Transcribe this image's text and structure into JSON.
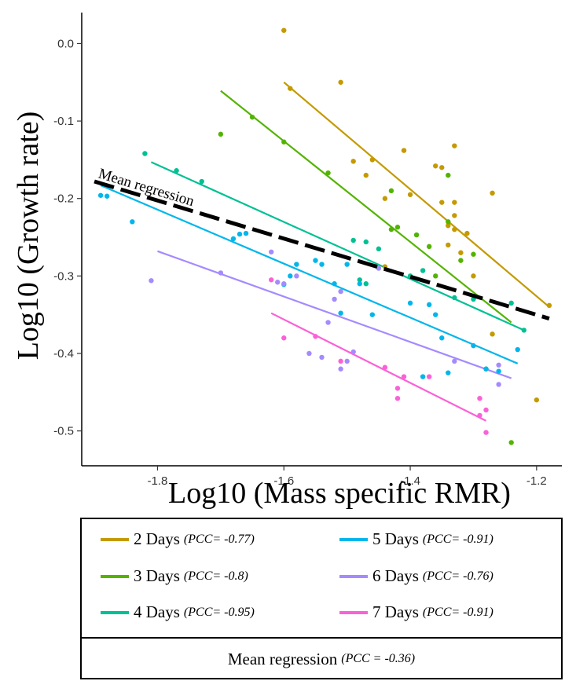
{
  "chart_data": {
    "type": "scatter",
    "xlabel": "Log10 (Mass specific RMR)",
    "ylabel": "Log10 (Growth rate)",
    "xlim": [
      -1.92,
      -1.16
    ],
    "ylim": [
      -0.545,
      0.04
    ],
    "x_ticks": [
      -1.8,
      -1.6,
      -1.4,
      -1.2
    ],
    "x_tick_labels": [
      "-1.8",
      "-1.6",
      "-1.4",
      "-1.2"
    ],
    "y_ticks": [
      0.0,
      -0.1,
      -0.2,
      -0.3,
      -0.4,
      -0.5
    ],
    "y_tick_labels": [
      "0.0",
      "-0.1",
      "-0.2",
      "-0.3",
      "-0.4",
      "-0.5"
    ],
    "grid": false,
    "legend_position": "bottom",
    "series": [
      {
        "name": "2 Days",
        "pcc": "(PCC= -0.77)",
        "color": "#C49A00",
        "line": [
          [
            -1.6,
            -0.05
          ],
          [
            -1.18,
            -0.34
          ]
        ],
        "points": [
          [
            -1.6,
            0.017
          ],
          [
            -1.59,
            -0.058
          ],
          [
            -1.51,
            -0.05
          ],
          [
            -1.49,
            -0.152
          ],
          [
            -1.46,
            -0.15
          ],
          [
            -1.47,
            -0.17
          ],
          [
            -1.44,
            -0.2
          ],
          [
            -1.41,
            -0.138
          ],
          [
            -1.4,
            -0.195
          ],
          [
            -1.44,
            -0.288
          ],
          [
            -1.36,
            -0.158
          ],
          [
            -1.35,
            -0.16
          ],
          [
            -1.35,
            -0.205
          ],
          [
            -1.34,
            -0.235
          ],
          [
            -1.33,
            -0.132
          ],
          [
            -1.33,
            -0.205
          ],
          [
            -1.33,
            -0.222
          ],
          [
            -1.32,
            -0.27
          ],
          [
            -1.31,
            -0.245
          ],
          [
            -1.3,
            -0.3
          ],
          [
            -1.34,
            -0.26
          ],
          [
            -1.27,
            -0.193
          ],
          [
            -1.27,
            -0.375
          ],
          [
            -1.2,
            -0.46
          ],
          [
            -1.18,
            -0.338
          ],
          [
            -1.33,
            -0.24
          ]
        ]
      },
      {
        "name": "3 Days",
        "pcc": "(PCC= -0.8)",
        "color": "#53B400",
        "line": [
          [
            -1.7,
            -0.061
          ],
          [
            -1.24,
            -0.36
          ]
        ],
        "points": [
          [
            -1.7,
            -0.117
          ],
          [
            -1.65,
            -0.095
          ],
          [
            -1.6,
            -0.127
          ],
          [
            -1.53,
            -0.167
          ],
          [
            -1.43,
            -0.19
          ],
          [
            -1.42,
            -0.237
          ],
          [
            -1.39,
            -0.247
          ],
          [
            -1.37,
            -0.262
          ],
          [
            -1.36,
            -0.3
          ],
          [
            -1.34,
            -0.17
          ],
          [
            -1.32,
            -0.28
          ],
          [
            -1.3,
            -0.272
          ],
          [
            -1.24,
            -0.515
          ],
          [
            -1.43,
            -0.24
          ],
          [
            -1.28,
            -0.42
          ],
          [
            -1.34,
            -0.23
          ]
        ]
      },
      {
        "name": "4 Days",
        "pcc": "(PCC= -0.95)",
        "color": "#00C094",
        "line": [
          [
            -1.81,
            -0.153
          ],
          [
            -1.22,
            -0.37
          ]
        ],
        "points": [
          [
            -1.82,
            -0.142
          ],
          [
            -1.77,
            -0.164
          ],
          [
            -1.73,
            -0.178
          ],
          [
            -1.49,
            -0.254
          ],
          [
            -1.47,
            -0.256
          ],
          [
            -1.45,
            -0.265
          ],
          [
            -1.47,
            -0.31
          ],
          [
            -1.38,
            -0.293
          ],
          [
            -1.33,
            -0.328
          ],
          [
            -1.3,
            -0.33
          ],
          [
            -1.24,
            -0.335
          ],
          [
            -1.22,
            -0.37
          ],
          [
            -1.4,
            -0.3
          ],
          [
            -1.48,
            -0.305
          ]
        ]
      },
      {
        "name": "5 Days",
        "pcc": "(PCC= -0.91)",
        "color": "#00B6EB",
        "line": [
          [
            -1.89,
            -0.183
          ],
          [
            -1.23,
            -0.413
          ]
        ],
        "points": [
          [
            -1.89,
            -0.196
          ],
          [
            -1.88,
            -0.197
          ],
          [
            -1.84,
            -0.23
          ],
          [
            -1.66,
            -0.245
          ],
          [
            -1.67,
            -0.246
          ],
          [
            -1.68,
            -0.252
          ],
          [
            -1.59,
            -0.3
          ],
          [
            -1.58,
            -0.285
          ],
          [
            -1.6,
            -0.311
          ],
          [
            -1.55,
            -0.28
          ],
          [
            -1.52,
            -0.31
          ],
          [
            -1.51,
            -0.348
          ],
          [
            -1.48,
            -0.31
          ],
          [
            -1.46,
            -0.35
          ],
          [
            -1.45,
            -0.29
          ],
          [
            -1.4,
            -0.335
          ],
          [
            -1.37,
            -0.337
          ],
          [
            -1.36,
            -0.35
          ],
          [
            -1.35,
            -0.38
          ],
          [
            -1.34,
            -0.425
          ],
          [
            -1.38,
            -0.43
          ],
          [
            -1.28,
            -0.42
          ],
          [
            -1.3,
            -0.39
          ],
          [
            -1.26,
            -0.423
          ],
          [
            -1.23,
            -0.395
          ],
          [
            -1.5,
            -0.285
          ],
          [
            -1.54,
            -0.285
          ]
        ]
      },
      {
        "name": "6 Days",
        "pcc": "(PCC= -0.76)",
        "color": "#A58AFF",
        "line": [
          [
            -1.8,
            -0.268
          ],
          [
            -1.24,
            -0.432
          ]
        ],
        "points": [
          [
            -1.81,
            -0.306
          ],
          [
            -1.7,
            -0.296
          ],
          [
            -1.62,
            -0.269
          ],
          [
            -1.61,
            -0.308
          ],
          [
            -1.58,
            -0.3
          ],
          [
            -1.56,
            -0.4
          ],
          [
            -1.53,
            -0.36
          ],
          [
            -1.52,
            -0.33
          ],
          [
            -1.51,
            -0.32
          ],
          [
            -1.5,
            -0.41
          ],
          [
            -1.51,
            -0.42
          ],
          [
            -1.49,
            -0.398
          ],
          [
            -1.45,
            -0.29
          ],
          [
            -1.33,
            -0.41
          ],
          [
            -1.26,
            -0.415
          ],
          [
            -1.26,
            -0.44
          ],
          [
            -1.6,
            -0.31
          ],
          [
            -1.54,
            -0.405
          ]
        ]
      },
      {
        "name": "7 Days",
        "pcc": "(PCC= -0.91)",
        "color": "#FB61D7",
        "line": [
          [
            -1.62,
            -0.348
          ],
          [
            -1.28,
            -0.487
          ]
        ],
        "points": [
          [
            -1.62,
            -0.305
          ],
          [
            -1.6,
            -0.38
          ],
          [
            -1.55,
            -0.378
          ],
          [
            -1.51,
            -0.41
          ],
          [
            -1.44,
            -0.418
          ],
          [
            -1.42,
            -0.445
          ],
          [
            -1.42,
            -0.458
          ],
          [
            -1.37,
            -0.43
          ],
          [
            -1.29,
            -0.458
          ],
          [
            -1.29,
            -0.48
          ],
          [
            -1.28,
            -0.473
          ],
          [
            -1.28,
            -0.502
          ],
          [
            -1.41,
            -0.43
          ]
        ]
      }
    ],
    "mean_regression": {
      "name": "Mean regression",
      "pcc": "(PCC = -0.36)",
      "color": "#000000",
      "line": [
        [
          -1.9,
          -0.178
        ],
        [
          -1.18,
          -0.355
        ]
      ]
    }
  }
}
